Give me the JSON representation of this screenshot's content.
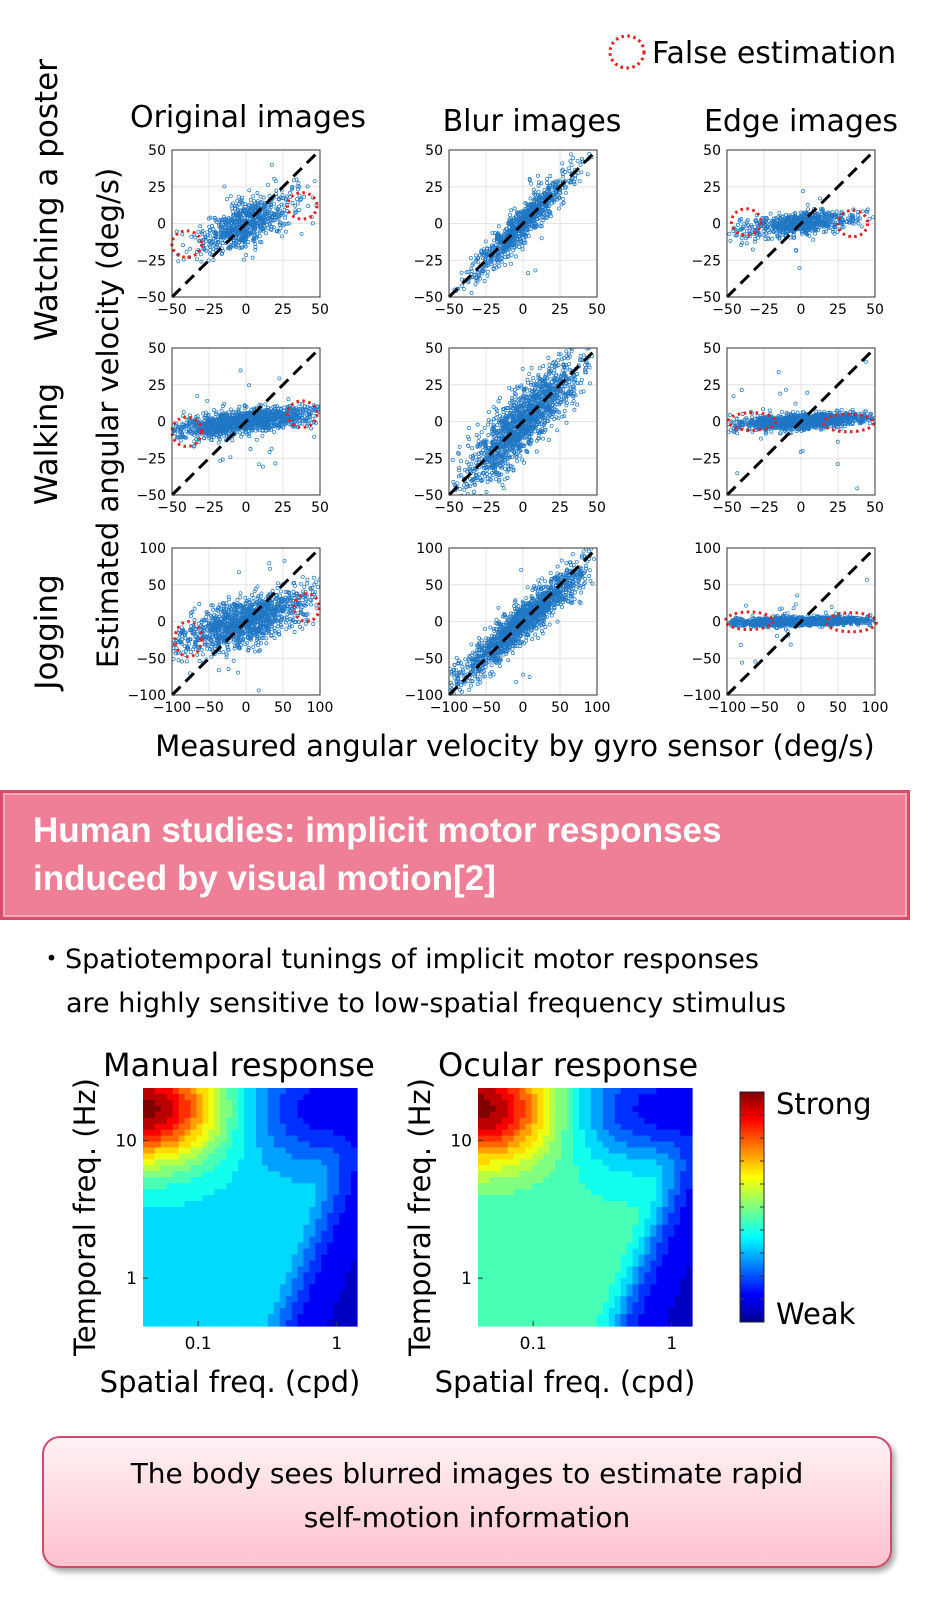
{
  "legend_label": "False estimation",
  "top_figure": {
    "column_titles": [
      "Original images",
      "Blur images",
      "Edge images"
    ],
    "row_titles": [
      "Watching a poster",
      "Walking",
      "Jogging"
    ],
    "ylabel": "Estimated angular velocity (deg/s)",
    "xlabel": "Measured angular velocity by gyro sensor (deg/s)"
  },
  "banner": {
    "line1": "Human studies: implicit motor responses",
    "line2": "induced by visual motion[2]"
  },
  "bullet": {
    "marker": "・",
    "line1": "Spatiotemporal tunings of implicit motor responses",
    "line2": "are highly sensitive to low-spatial frequency stimulus"
  },
  "colorbar": {
    "high_label": "Strong",
    "low_label": "Weak"
  },
  "conclusion": {
    "line1": "The body sees blurred images to estimate rapid",
    "line2": "self-motion information"
  },
  "chart_data": [
    {
      "type": "scatter",
      "grid": true,
      "reference_line": "y = x (dashed)",
      "scatter_grid": [
        {
          "row": "Watching a poster",
          "col": "Original images",
          "xlim": [
            -50,
            50
          ],
          "ylim": [
            -50,
            50
          ],
          "ticks": [
            -50,
            -25,
            0,
            25,
            50
          ],
          "tick_labels": [
            "−50",
            "−25",
            "0",
            "25",
            "50"
          ],
          "relation": "flattened",
          "slope": 0.45,
          "xspread": 15,
          "noise": 8,
          "n": 700,
          "false_estimation_regions": [
            {
              "x": -40,
              "y": -14,
              "rx": 10,
              "ry": 9
            },
            {
              "x": 38,
              "y": 12,
              "rx": 10,
              "ry": 9
            }
          ]
        },
        {
          "row": "Watching a poster",
          "col": "Blur images",
          "xlim": [
            -50,
            50
          ],
          "ylim": [
            -50,
            50
          ],
          "ticks": [
            -50,
            -25,
            0,
            25,
            50
          ],
          "tick_labels": [
            "−50",
            "−25",
            "0",
            "25",
            "50"
          ],
          "relation": "identity",
          "slope": 1.0,
          "xspread": 16,
          "noise": 6,
          "n": 900,
          "false_estimation_regions": []
        },
        {
          "row": "Watching a poster",
          "col": "Edge images",
          "xlim": [
            -50,
            50
          ],
          "ylim": [
            -50,
            50
          ],
          "ticks": [
            -50,
            -25,
            0,
            25,
            50
          ],
          "tick_labels": [
            "−50",
            "−25",
            "0",
            "25",
            "50"
          ],
          "relation": "flattened",
          "slope": 0.12,
          "xspread": 17,
          "noise": 3.5,
          "n": 700,
          "false_estimation_regions": [
            {
              "x": -37,
              "y": 1,
              "rx": 10,
              "ry": 9
            },
            {
              "x": 35,
              "y": 0,
              "rx": 10,
              "ry": 9
            }
          ]
        },
        {
          "row": "Walking",
          "col": "Original images",
          "xlim": [
            -50,
            50
          ],
          "ylim": [
            -50,
            50
          ],
          "ticks": [
            -50,
            -25,
            0,
            25,
            50
          ],
          "tick_labels": [
            "−50",
            "−25",
            "0",
            "25",
            "50"
          ],
          "relation": "flattened",
          "slope": 0.12,
          "xspread": 22,
          "noise": 4,
          "n": 1300,
          "false_estimation_regions": [
            {
              "x": -40,
              "y": -7,
              "rx": 10,
              "ry": 10
            },
            {
              "x": 38,
              "y": 5,
              "rx": 10,
              "ry": 9
            }
          ]
        },
        {
          "row": "Walking",
          "col": "Blur images",
          "xlim": [
            -50,
            50
          ],
          "ylim": [
            -50,
            50
          ],
          "ticks": [
            -50,
            -25,
            0,
            25,
            50
          ],
          "tick_labels": [
            "−50",
            "−25",
            "0",
            "25",
            "50"
          ],
          "relation": "identity",
          "slope": 0.95,
          "xspread": 18,
          "noise": 11,
          "n": 1500,
          "false_estimation_regions": []
        },
        {
          "row": "Walking",
          "col": "Edge images",
          "xlim": [
            -50,
            50
          ],
          "ylim": [
            -50,
            50
          ],
          "ticks": [
            -50,
            -25,
            0,
            25,
            50
          ],
          "tick_labels": [
            "−50",
            "−25",
            "0",
            "25",
            "50"
          ],
          "relation": "flattened",
          "slope": 0.05,
          "xspread": 22,
          "noise": 2.5,
          "n": 1300,
          "false_estimation_regions": [
            {
              "x": -33,
              "y": 0,
              "rx": 16,
              "ry": 6
            },
            {
              "x": 32,
              "y": -1,
              "rx": 17,
              "ry": 6
            }
          ]
        },
        {
          "row": "Jogging",
          "col": "Original images",
          "xlim": [
            -100,
            100
          ],
          "ylim": [
            -100,
            100
          ],
          "ticks": [
            -100,
            -50,
            0,
            50,
            100
          ],
          "tick_labels": [
            "−100",
            "−50",
            "0",
            "50",
            "100"
          ],
          "relation": "flattened",
          "slope": 0.3,
          "xspread": 42,
          "noise": 16,
          "n": 1300,
          "false_estimation_regions": [
            {
              "x": -78,
              "y": -24,
              "rx": 18,
              "ry": 24
            },
            {
              "x": 82,
              "y": 19,
              "rx": 17,
              "ry": 19
            }
          ]
        },
        {
          "row": "Jogging",
          "col": "Blur images",
          "xlim": [
            -100,
            100
          ],
          "ylim": [
            -100,
            100
          ],
          "ticks": [
            -100,
            -50,
            0,
            50,
            100
          ],
          "tick_labels": [
            "−100",
            "−50",
            "0",
            "50",
            "100"
          ],
          "relation": "identity",
          "slope": 0.85,
          "xspread": 42,
          "noise": 14,
          "n": 1500,
          "false_estimation_regions": []
        },
        {
          "row": "Jogging",
          "col": "Edge images",
          "xlim": [
            -100,
            100
          ],
          "ylim": [
            -100,
            100
          ],
          "ticks": [
            -100,
            -50,
            0,
            50,
            100
          ],
          "tick_labels": [
            "−100",
            "−50",
            "0",
            "50",
            "100"
          ],
          "relation": "flattened",
          "slope": 0.02,
          "xspread": 45,
          "noise": 3,
          "n": 1300,
          "false_estimation_regions": [
            {
              "x": -70,
              "y": 1,
              "rx": 32,
              "ry": 12
            },
            {
              "x": 68,
              "y": -1,
              "rx": 34,
              "ry": 13
            }
          ]
        }
      ]
    },
    {
      "type": "heatmap",
      "title": "Manual response",
      "xlabel": "Spatial freq. (cpd)",
      "ylabel": "Temporal freq. (Hz)",
      "x_scale": "log",
      "y_scale": "log",
      "xlim": [
        0.04,
        1.4
      ],
      "ylim": [
        0.45,
        24
      ],
      "xticks": [
        0.1,
        1
      ],
      "xtick_labels": [
        "0.1",
        "1"
      ],
      "yticks": [
        1,
        10
      ],
      "ytick_labels": [
        "1",
        "10"
      ],
      "peak": {
        "spatial": 0.04,
        "temporal": 17
      },
      "low_temporal_floor": 0.28
    },
    {
      "type": "heatmap",
      "title": "Ocular response",
      "xlabel": "Spatial freq. (cpd)",
      "ylabel": "Temporal freq. (Hz)",
      "x_scale": "log",
      "y_scale": "log",
      "xlim": [
        0.04,
        1.4
      ],
      "ylim": [
        0.45,
        24
      ],
      "xticks": [
        0.1,
        1
      ],
      "xtick_labels": [
        "0.1",
        "1"
      ],
      "yticks": [
        1,
        10
      ],
      "ytick_labels": [
        "1",
        "10"
      ],
      "peak": {
        "spatial": 0.04,
        "temporal": 17
      },
      "low_temporal_floor": 0.38
    }
  ]
}
